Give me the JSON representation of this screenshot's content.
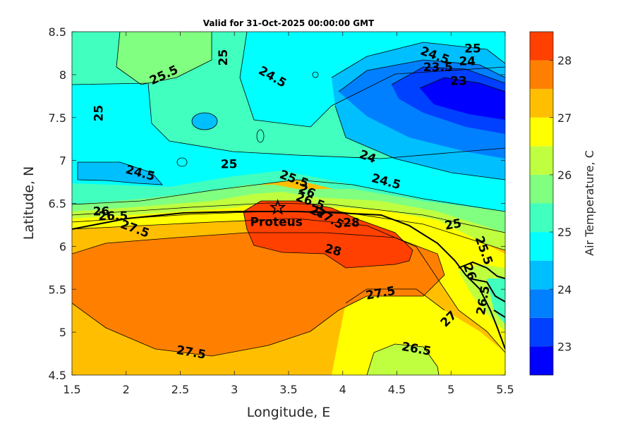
{
  "chart_data": {
    "type": "heatmap",
    "subtype": "filled-contour",
    "title": "Valid for 31-Oct-2025 00:00:00 GMT",
    "xlabel": "Longitude, E",
    "ylabel": "Latitude, N",
    "xlim": [
      1.5,
      5.5
    ],
    "ylim": [
      4.5,
      8.5
    ],
    "xticks": [
      "1.5",
      "2",
      "2.5",
      "3",
      "3.5",
      "4",
      "4.5",
      "5",
      "5.5"
    ],
    "yticks": [
      "4.5",
      "5",
      "5.5",
      "6",
      "6.5",
      "7",
      "7.5",
      "8",
      "8.5"
    ],
    "colorbar": {
      "label": "Air Temperature, C",
      "range": [
        22.5,
        28.5
      ],
      "ticks": [
        "23",
        "24",
        "25",
        "26",
        "27",
        "28"
      ],
      "levels": [
        22.5,
        23,
        23.5,
        24,
        24.5,
        25,
        25.5,
        26,
        26.5,
        27,
        27.5,
        28,
        28.5
      ],
      "colors": [
        "#0000ff",
        "#0040ff",
        "#0080ff",
        "#00bfff",
        "#00ffff",
        "#40ffbf",
        "#80ff80",
        "#bfff40",
        "#ffff00",
        "#ffbf00",
        "#ff8000",
        "#ff4000"
      ]
    },
    "regions": [
      {
        "lon": 1.9,
        "lat": 5.3,
        "band": 27.25
      },
      {
        "lon": 2.6,
        "lat": 8.1,
        "band": 25.25
      },
      {
        "lon": 3.0,
        "lat": 7.6,
        "band": 24.75
      },
      {
        "lon": 5.0,
        "lat": 7.8,
        "band": 23.25
      },
      {
        "lon": 4.7,
        "lat": 4.7,
        "band": 26.25
      },
      {
        "lon": 3.6,
        "lat": 6.2,
        "band": 27.75
      }
    ],
    "contour_labels": [
      {
        "text": "25.5",
        "lon": 2.35,
        "lat": 7.99,
        "angle": -25
      },
      {
        "text": "25",
        "lon": 2.9,
        "lat": 8.2,
        "angle": -90
      },
      {
        "text": "24.5",
        "lon": 3.35,
        "lat": 7.97,
        "angle": 30
      },
      {
        "text": "25",
        "lon": 1.75,
        "lat": 7.55,
        "angle": -90
      },
      {
        "text": "24.5",
        "lon": 4.85,
        "lat": 8.22,
        "angle": 20
      },
      {
        "text": "25",
        "lon": 5.2,
        "lat": 8.3,
        "angle": 0
      },
      {
        "text": "24",
        "lon": 5.15,
        "lat": 8.15,
        "angle": 0
      },
      {
        "text": "23.5",
        "lon": 4.88,
        "lat": 8.08,
        "angle": 0
      },
      {
        "text": "23",
        "lon": 5.07,
        "lat": 7.92,
        "angle": 0
      },
      {
        "text": "24",
        "lon": 4.23,
        "lat": 7.04,
        "angle": 20
      },
      {
        "text": "24.5",
        "lon": 4.4,
        "lat": 6.75,
        "angle": 15
      },
      {
        "text": "24.5",
        "lon": 2.13,
        "lat": 6.85,
        "angle": 15
      },
      {
        "text": "25",
        "lon": 2.95,
        "lat": 6.95,
        "angle": 0
      },
      {
        "text": "25.5",
        "lon": 3.55,
        "lat": 6.78,
        "angle": 20
      },
      {
        "text": "26",
        "lon": 3.67,
        "lat": 6.64,
        "angle": 25
      },
      {
        "text": "26.5",
        "lon": 3.7,
        "lat": 6.52,
        "angle": 20
      },
      {
        "text": "27",
        "lon": 3.77,
        "lat": 6.39,
        "angle": 25
      },
      {
        "text": "27.5",
        "lon": 3.88,
        "lat": 6.32,
        "angle": 30
      },
      {
        "text": "28",
        "lon": 4.08,
        "lat": 6.27,
        "angle": 0
      },
      {
        "text": "28",
        "lon": 3.91,
        "lat": 5.95,
        "angle": 15
      },
      {
        "text": "26",
        "lon": 1.77,
        "lat": 6.4,
        "angle": 0
      },
      {
        "text": "26.5",
        "lon": 1.88,
        "lat": 6.35,
        "angle": 0
      },
      {
        "text": "27.5",
        "lon": 2.08,
        "lat": 6.2,
        "angle": 20
      },
      {
        "text": "25",
        "lon": 5.02,
        "lat": 6.25,
        "angle": -10
      },
      {
        "text": "25.5",
        "lon": 5.3,
        "lat": 5.95,
        "angle": 70
      },
      {
        "text": "26",
        "lon": 5.17,
        "lat": 5.7,
        "angle": 70
      },
      {
        "text": "26.5",
        "lon": 5.3,
        "lat": 5.37,
        "angle": -80
      },
      {
        "text": "27",
        "lon": 4.98,
        "lat": 5.15,
        "angle": -45
      },
      {
        "text": "27.5",
        "lon": 4.35,
        "lat": 5.45,
        "angle": -10
      },
      {
        "text": "26.5",
        "lon": 4.68,
        "lat": 4.8,
        "angle": 10
      },
      {
        "text": "27.5",
        "lon": 2.6,
        "lat": 4.76,
        "angle": 10
      }
    ],
    "station": {
      "name": "Proteus",
      "lon": 3.4,
      "lat": 6.45
    }
  }
}
